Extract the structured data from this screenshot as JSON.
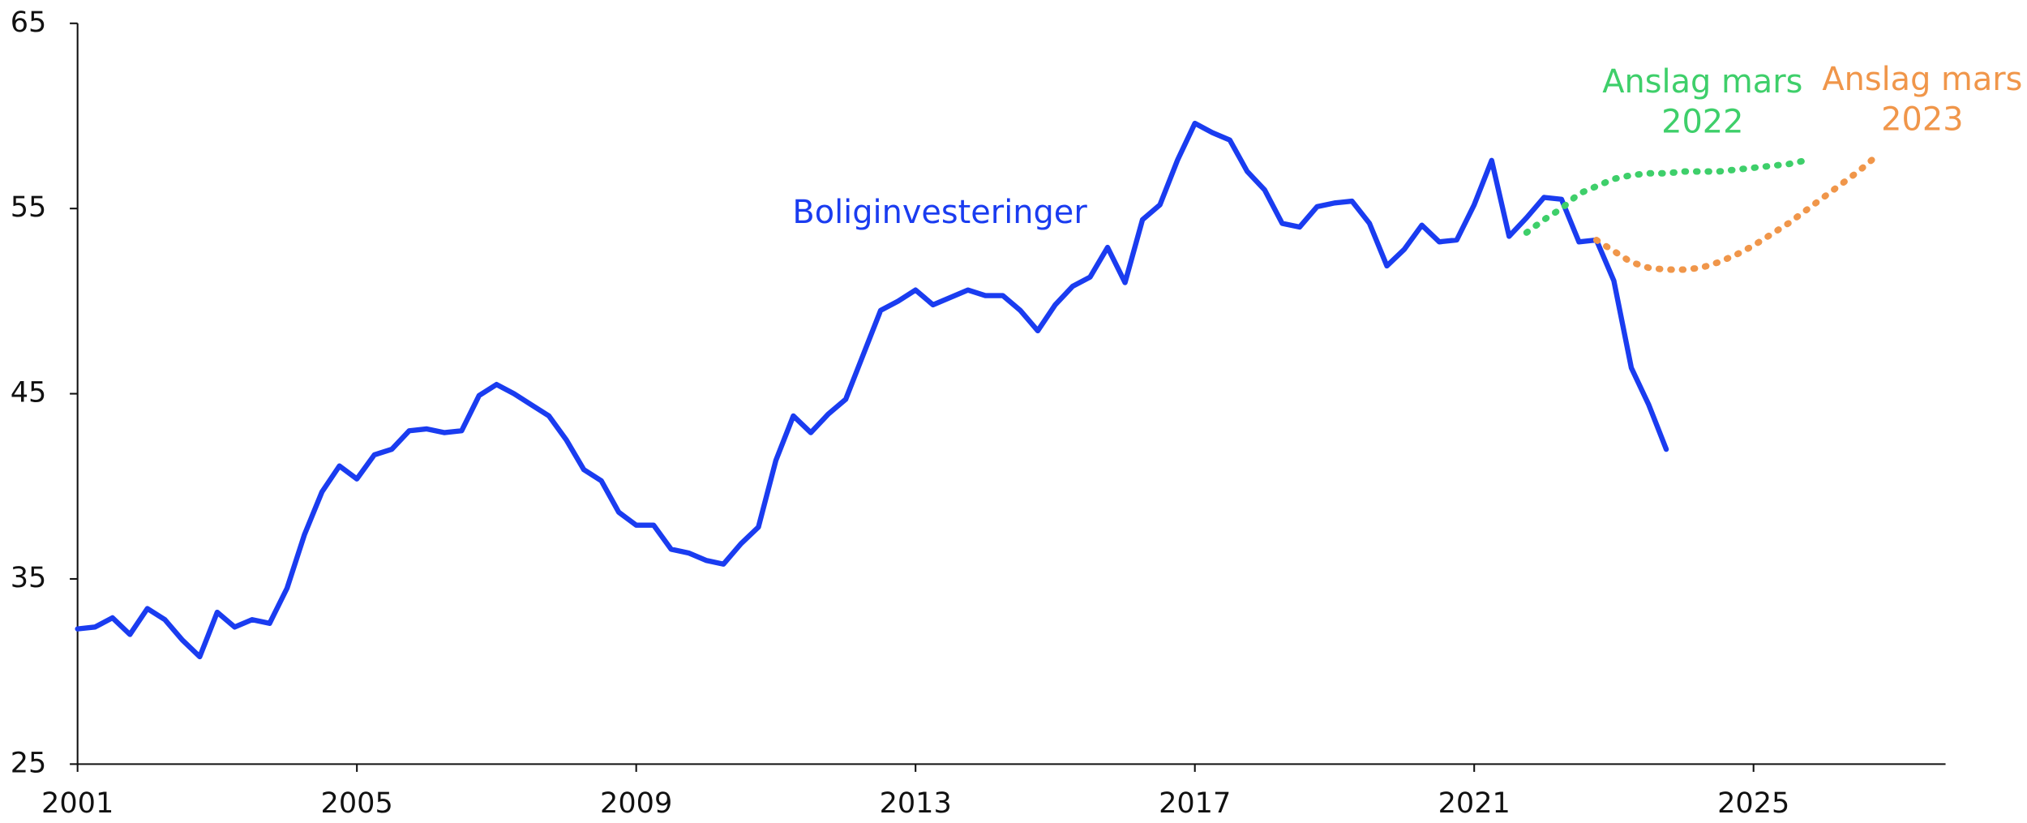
{
  "chart_data": {
    "type": "line",
    "xlim": [
      2001,
      2027.75
    ],
    "xticks": [
      2001,
      2005,
      2009,
      2013,
      2017,
      2021,
      2025
    ],
    "ylim": [
      25,
      65
    ],
    "yticks": [
      25,
      35,
      45,
      55,
      65
    ],
    "series": [
      {
        "name": "Boliginvesteringer",
        "color": "#1a3cf0",
        "style": "solid",
        "x": [
          2001,
          2001.25,
          2001.5,
          2001.75,
          2002,
          2002.25,
          2002.5,
          2002.75,
          2003,
          2003.25,
          2003.5,
          2003.75,
          2004,
          2004.25,
          2004.5,
          2004.75,
          2005,
          2005.25,
          2005.5,
          2005.75,
          2006,
          2006.25,
          2006.5,
          2006.75,
          2007,
          2007.25,
          2007.5,
          2007.75,
          2008,
          2008.25,
          2008.5,
          2008.75,
          2009,
          2009.25,
          2009.5,
          2009.75,
          2010,
          2010.25,
          2010.5,
          2010.75,
          2011,
          2011.25,
          2011.5,
          2011.75,
          2012,
          2012.25,
          2012.5,
          2012.75,
          2013,
          2013.25,
          2013.5,
          2013.75,
          2014,
          2014.25,
          2014.5,
          2014.75,
          2015,
          2015.25,
          2015.5,
          2015.75,
          2016,
          2016.25,
          2016.5,
          2016.75,
          2017,
          2017.25,
          2017.5,
          2017.75,
          2018,
          2018.25,
          2018.5,
          2018.75,
          2019,
          2019.25,
          2019.5,
          2019.75,
          2020,
          2020.25,
          2020.5,
          2020.75,
          2021,
          2021.25,
          2021.5,
          2021.75,
          2022,
          2022.25,
          2022.5,
          2022.75,
          2023,
          2023.25,
          2023.5,
          2023.75
        ],
        "values": [
          32.3,
          32.4,
          32.9,
          32.0,
          33.4,
          32.8,
          31.7,
          30.8,
          33.2,
          32.4,
          32.8,
          32.6,
          34.5,
          37.4,
          39.7,
          41.1,
          40.4,
          41.7,
          42.0,
          43.0,
          43.1,
          42.9,
          43.0,
          44.9,
          45.5,
          45.0,
          44.4,
          43.8,
          42.5,
          40.9,
          40.3,
          38.6,
          37.9,
          37.9,
          36.6,
          36.4,
          36.0,
          35.8,
          36.9,
          37.8,
          41.4,
          43.8,
          42.9,
          43.9,
          44.7,
          47.1,
          49.5,
          50.0,
          50.6,
          49.8,
          50.2,
          50.6,
          50.3,
          50.3,
          49.5,
          48.4,
          49.8,
          50.8,
          51.3,
          52.9,
          51.0,
          54.4,
          55.2,
          57.6,
          59.6,
          59.1,
          58.7,
          57.0,
          56.0,
          54.2,
          54.0,
          55.1,
          55.3,
          55.4,
          54.2,
          51.9,
          52.8,
          54.1,
          53.2,
          53.3,
          55.2,
          57.6,
          53.5,
          54.5,
          55.6,
          55.5,
          53.2,
          53.3,
          51.1,
          46.4,
          44.4,
          42.0
        ]
      },
      {
        "label": [
          "Anslag mars",
          "2022"
        ],
        "color": "#3ecf6a",
        "style": "dotted",
        "x": [
          2021.75,
          2022,
          2022.25,
          2022.5,
          2022.75,
          2023,
          2023.25,
          2023.5,
          2023.75,
          2024,
          2024.25,
          2024.5,
          2024.75,
          2025,
          2025.25,
          2025.5,
          2025.75
        ],
        "values": [
          53.7,
          54.4,
          55.0,
          55.8,
          56.2,
          56.6,
          56.8,
          56.9,
          56.9,
          57.0,
          57.0,
          57.0,
          57.1,
          57.2,
          57.3,
          57.4,
          57.6
        ]
      },
      {
        "label": [
          "Anslag mars",
          "2023"
        ],
        "color": "#f0964a",
        "style": "dotted",
        "x": [
          2022.75,
          2023,
          2023.25,
          2023.5,
          2023.75,
          2024,
          2024.25,
          2024.5,
          2024.75,
          2025,
          2025.25,
          2025.5,
          2025.75,
          2026,
          2026.25,
          2026.5,
          2026.75
        ],
        "values": [
          53.3,
          52.7,
          52.1,
          51.8,
          51.7,
          51.7,
          51.8,
          52.1,
          52.5,
          53.0,
          53.6,
          54.2,
          54.9,
          55.6,
          56.3,
          57.0,
          57.8
        ]
      }
    ]
  }
}
